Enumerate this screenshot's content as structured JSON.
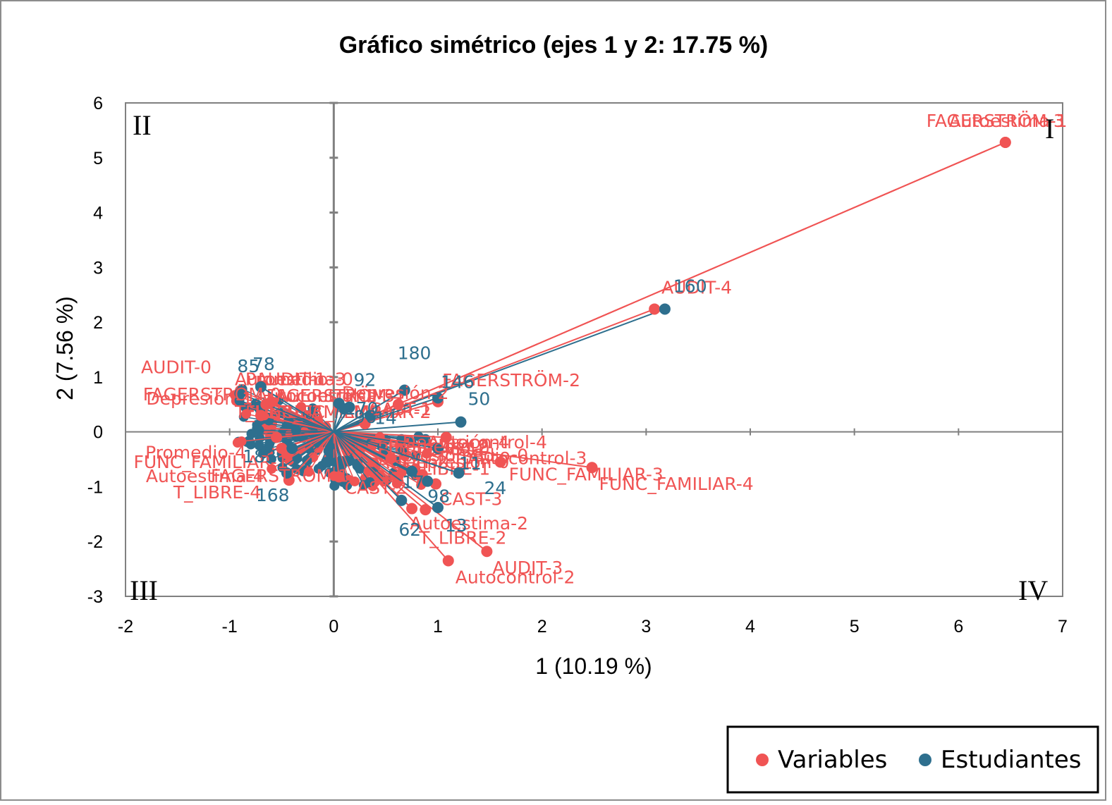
{
  "colors": {
    "variables": "#f05454",
    "estudiantes": "#2e6f8e",
    "axis": "#808080"
  },
  "chart_data": {
    "type": "scatter",
    "title": "Gráfico simétrico (ejes 1 y 2: 17.75 %)",
    "xlabel": "1 (10.19 %)",
    "ylabel": "2 (7.56 %)",
    "xlim": [
      -2,
      7
    ],
    "ylim": [
      -3,
      6
    ],
    "xticks": [
      "-2",
      "-1",
      "0",
      "1",
      "2",
      "3",
      "4",
      "5",
      "6",
      "7"
    ],
    "yticks": [
      "-3",
      "-2",
      "-1",
      "0",
      "1",
      "2",
      "3",
      "4",
      "5",
      "6"
    ],
    "quadrants": [
      "I",
      "II",
      "III",
      "IV"
    ],
    "legend": [
      "Variables",
      "Estudiantes"
    ],
    "series": [
      {
        "name": "Variables",
        "points": [
          {
            "label": "FAGERSTRÖM-3",
            "x": 6.45,
            "y": 5.28
          },
          {
            "label": "Autoestima-1",
            "x": 6.45,
            "y": 5.28
          },
          {
            "label": "AUDIT-4",
            "x": 3.08,
            "y": 2.24
          },
          {
            "label": "FAGERSTRÖM-2",
            "x": 1.0,
            "y": 0.55
          },
          {
            "label": "Depresión-2",
            "x": 0.62,
            "y": 0.5
          },
          {
            "label": "CAST-1",
            "x": 0.3,
            "y": 0.15
          },
          {
            "label": "Autocontrol-3",
            "x": 1.08,
            "y": -0.1
          },
          {
            "label": "FUNC_FAMILIAR-3",
            "x": 1.6,
            "y": -0.55
          },
          {
            "label": "FUNC_FAMILIAR-4",
            "x": 2.48,
            "y": -0.65
          },
          {
            "label": "FAGERSTRÖM-1",
            "x": 0.85,
            "y": -0.78
          },
          {
            "label": "CAST-3",
            "x": 0.98,
            "y": -0.95
          },
          {
            "label": "Autoestima-2",
            "x": 0.88,
            "y": -1.42
          },
          {
            "label": "T_LIBRE-2",
            "x": 0.75,
            "y": -1.4
          },
          {
            "label": "AUDIT-3",
            "x": 1.47,
            "y": -2.18
          },
          {
            "label": "Autocontrol-2",
            "x": 1.1,
            "y": -2.35
          },
          {
            "label": "CAST-2",
            "x": 0.05,
            "y": -0.82
          },
          {
            "label": "AUDIT-0",
            "x": -0.7,
            "y": 0.3
          },
          {
            "label": "FAGERSTRÖM-0",
            "x": -0.6,
            "y": 0.55
          },
          {
            "label": "Depresión-1",
            "x": -0.65,
            "y": 0.5
          },
          {
            "label": "Promedio-4",
            "x": -0.55,
            "y": -0.1
          },
          {
            "label": "FUNC_FAMILIAR-1",
            "x": -0.5,
            "y": -0.3
          },
          {
            "label": "Autoestima-4",
            "x": -0.45,
            "y": -0.4
          },
          {
            "label": "T_LIBRE-4",
            "x": -0.43,
            "y": -0.88
          },
          {
            "label": "Promedio-2",
            "x": 0.55,
            "y": -0.48
          }
        ]
      },
      {
        "name": "Estudiantes",
        "points": [
          {
            "label": "160",
            "x": 3.18,
            "y": 2.24
          },
          {
            "label": "180",
            "x": 0.68,
            "y": 0.76
          },
          {
            "label": "146",
            "x": 1.0,
            "y": 0.62
          },
          {
            "label": "50",
            "x": 1.22,
            "y": 0.18
          },
          {
            "label": "92",
            "x": 0.15,
            "y": 0.45
          },
          {
            "label": "170",
            "x": 0.05,
            "y": 0.52
          },
          {
            "label": "96",
            "x": 0.1,
            "y": 0.42
          },
          {
            "label": "14",
            "x": 0.35,
            "y": 0.3
          },
          {
            "label": "11",
            "x": 1.0,
            "y": -0.3
          },
          {
            "label": "24",
            "x": 1.2,
            "y": -0.75
          },
          {
            "label": "98",
            "x": 0.9,
            "y": -0.9
          },
          {
            "label": "13",
            "x": 1.0,
            "y": -1.38
          },
          {
            "label": "62",
            "x": 0.65,
            "y": -1.25
          },
          {
            "label": "85",
            "x": -0.9,
            "y": 0.7
          },
          {
            "label": "78",
            "x": -0.7,
            "y": 0.82
          },
          {
            "label": "168",
            "x": -0.45,
            "y": -0.75
          },
          {
            "label": "183",
            "x": -0.4,
            "y": -0.3
          },
          {
            "label": "17",
            "x": 0.75,
            "y": -0.72
          }
        ]
      }
    ],
    "overlap_labels": [
      "Autoestima-0",
      "Promedio-1",
      "Autocontrol-1",
      "Depresión-0",
      "FUNC_FAMILIAR-2",
      "Autocontrol-4",
      "Promedio-3",
      "Depresión-3",
      "FAGERSTRÖM-4",
      "T_LIBRE-1",
      "T_LIBRE-3",
      "CAST-0",
      "AUDIT-1",
      "AUDIT-2",
      "Autoestima-3",
      "Depresión-4",
      "FUNC_FAMILIAR-0",
      "Promedio-0"
    ]
  }
}
